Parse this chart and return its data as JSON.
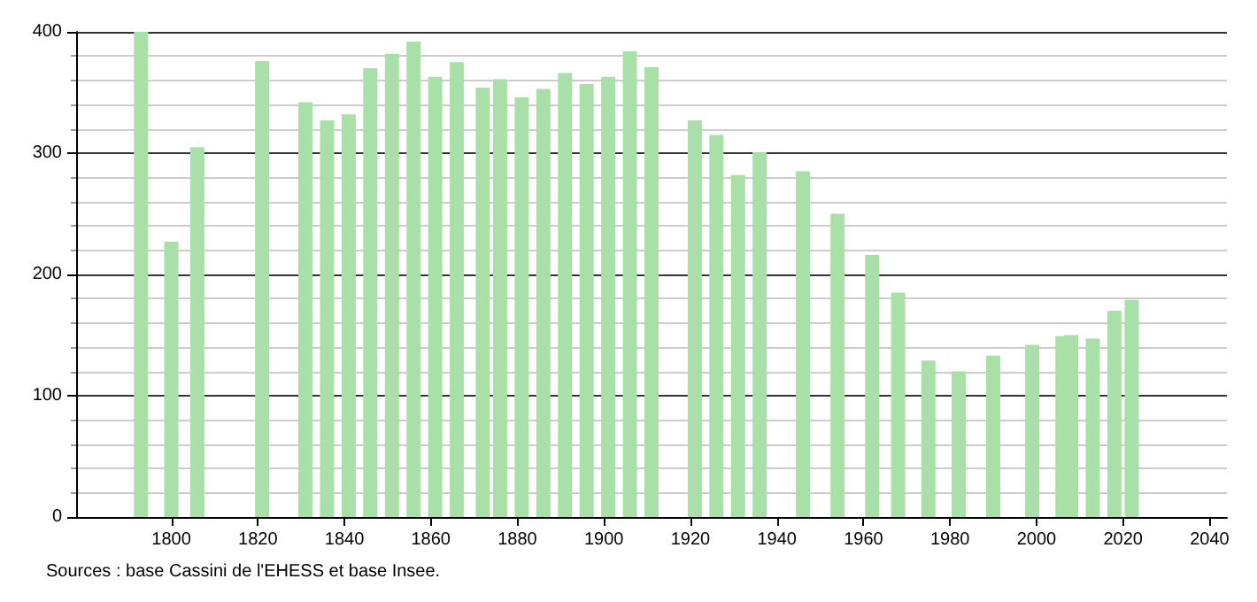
{
  "chart_data": {
    "type": "bar",
    "x": [
      1793,
      1800,
      1806,
      1821,
      1831,
      1836,
      1841,
      1846,
      1851,
      1856,
      1861,
      1866,
      1872,
      1876,
      1881,
      1886,
      1891,
      1896,
      1901,
      1906,
      1911,
      1921,
      1926,
      1931,
      1936,
      1946,
      1954,
      1962,
      1968,
      1975,
      1982,
      1990,
      1999,
      2006,
      2008,
      2013,
      2018,
      2022
    ],
    "values": [
      400,
      227,
      305,
      376,
      342,
      327,
      332,
      370,
      382,
      392,
      363,
      375,
      354,
      361,
      346,
      353,
      366,
      357,
      363,
      384,
      371,
      327,
      315,
      282,
      301,
      285,
      250,
      216,
      185,
      129,
      120,
      133,
      142,
      149,
      150,
      147,
      170,
      179
    ],
    "color": "#a8e0a8",
    "xlim": [
      1778,
      2044
    ],
    "xticks": [
      1800,
      1820,
      1840,
      1860,
      1880,
      1900,
      1920,
      1940,
      1960,
      1980,
      2000,
      2020,
      2040
    ],
    "ylim": [
      0,
      400
    ],
    "yticks": [
      0,
      100,
      200,
      300,
      400
    ],
    "grid": "y",
    "annotations": [
      "Sources : base Cassini de l'EHESS et base Insee."
    ]
  }
}
